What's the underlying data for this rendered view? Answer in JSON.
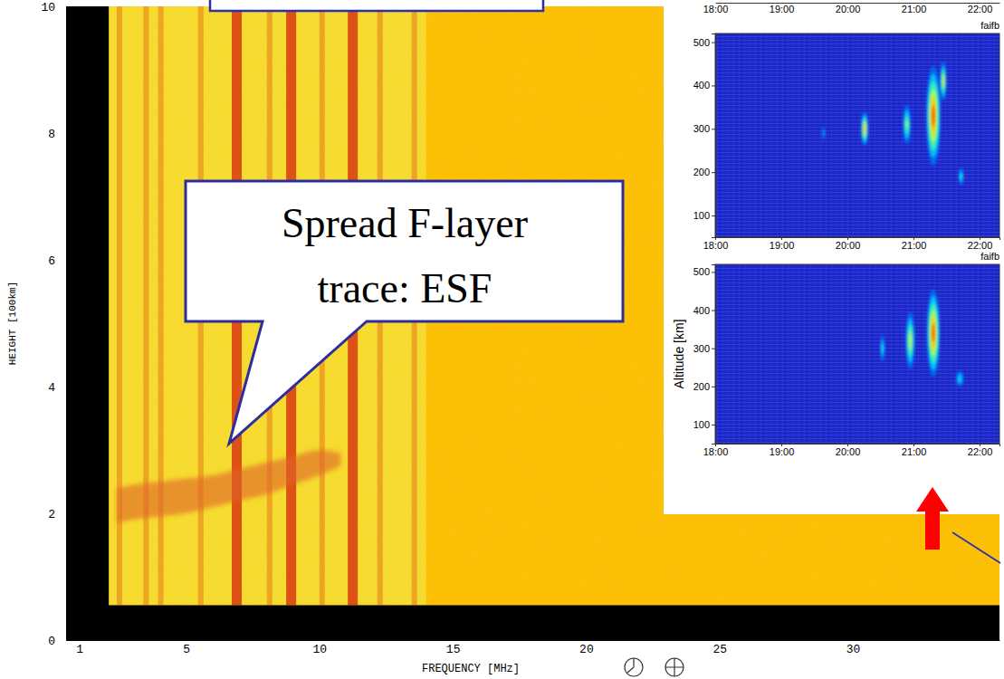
{
  "chart_data": [
    {
      "type": "area",
      "xlabel": "FREQUENCY [MHz]",
      "ylabel": "HEIGHT [100km]",
      "xlim": [
        0.5,
        35.5
      ],
      "xticks": [
        1,
        5,
        10,
        15,
        20,
        25,
        30
      ],
      "ylim": [
        0,
        10
      ],
      "yticks": [
        0,
        2,
        4,
        6,
        8,
        10
      ],
      "sounded_frequency": [
        2.1,
        14
      ],
      "min_height": 0.55,
      "interference": {
        "strong": [
          6.9,
          8.94,
          11.25
        ],
        "weak": [
          2.5,
          3.5,
          4.05,
          5.55,
          8.13,
          10.1,
          12.27,
          13.56
        ]
      },
      "series": [
        {
          "x": [
            2.4,
            3,
            4,
            5,
            6,
            7,
            8,
            9,
            10,
            10.8
          ],
          "lower": [
            1.85,
            1.9,
            1.95,
            2.0,
            2.1,
            2.2,
            2.3,
            2.45,
            2.6,
            2.75
          ],
          "upper": [
            2.4,
            2.45,
            2.5,
            2.55,
            2.6,
            2.7,
            2.8,
            2.9,
            3.0,
            2.95
          ],
          "color": "#e0642a"
        }
      ],
      "annotations": [
        {
          "lines": [
            "Spread F-layer",
            "trace: ESF"
          ]
        }
      ]
    },
    {
      "type": "heatmap",
      "xlim": [
        18,
        22.3
      ],
      "xticks": [
        {
          "value": 18,
          "label": "18:00"
        },
        {
          "value": 19,
          "label": "19:00"
        },
        {
          "value": 20,
          "label": "20:00"
        },
        {
          "value": 21,
          "label": "21:00"
        },
        {
          "value": 22,
          "label": "22:00"
        }
      ],
      "color_range": [
        0,
        1
      ],
      "panels": [
        {
          "title": "faifb",
          "ylim": [
            50,
            520
          ],
          "yticks": [
            100,
            200,
            300,
            400,
            500
          ],
          "echoes": [
            {
              "time": 19.64,
              "altitude": 290,
              "duration": 0.04,
              "depth": 30,
              "power": 0.35
            },
            {
              "time": 20.26,
              "altitude": 300,
              "duration": 0.11,
              "depth": 80,
              "power": 0.85
            },
            {
              "time": 20.9,
              "altitude": 310,
              "duration": 0.12,
              "depth": 90,
              "power": 0.6
            },
            {
              "time": 21.3,
              "altitude": 330,
              "duration": 0.22,
              "depth": 230,
              "power": 1.0
            },
            {
              "time": 21.45,
              "altitude": 410,
              "duration": 0.1,
              "depth": 90,
              "power": 0.75
            },
            {
              "time": 21.72,
              "altitude": 190,
              "duration": 0.08,
              "depth": 40,
              "power": 0.45
            }
          ]
        },
        {
          "title": "faifb",
          "ylabel": "Altitude [km]",
          "ylim": [
            50,
            520
          ],
          "yticks": [
            100,
            200,
            300,
            400,
            500
          ],
          "echoes": [
            {
              "time": 20.53,
              "altitude": 300,
              "duration": 0.07,
              "depth": 70,
              "power": 0.45
            },
            {
              "time": 20.95,
              "altitude": 320,
              "duration": 0.14,
              "depth": 150,
              "power": 0.7
            },
            {
              "time": 21.3,
              "altitude": 340,
              "duration": 0.2,
              "depth": 230,
              "power": 1.0
            },
            {
              "time": 21.7,
              "altitude": 220,
              "duration": 0.12,
              "depth": 40,
              "power": 0.4
            }
          ]
        }
      ]
    }
  ]
}
